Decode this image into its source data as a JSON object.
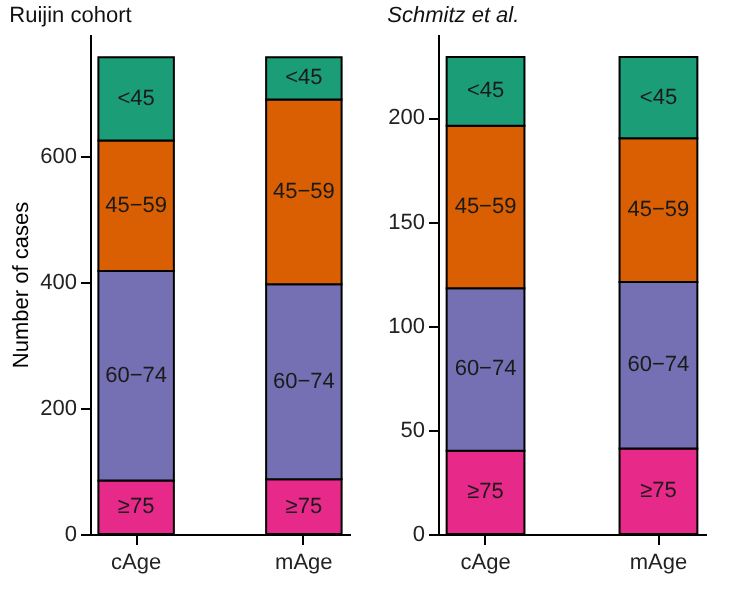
{
  "chart_data": [
    {
      "type": "bar",
      "title": "Ruijin cohort",
      "ylabel": "Number of cases",
      "categories": [
        "cAge",
        "mAge"
      ],
      "stacked": true,
      "legend": false,
      "grid": false,
      "series": [
        {
          "name": "≥75",
          "color": "#e7298a",
          "values": [
            85,
            87
          ]
        },
        {
          "name": "60−74",
          "color": "#7570b3",
          "values": [
            332,
            309
          ]
        },
        {
          "name": "45−59",
          "color": "#d95f02",
          "values": [
            207,
            293
          ]
        },
        {
          "name": "<45",
          "color": "#1b9e77",
          "values": [
            132,
            67
          ]
        }
      ],
      "ylim": [
        0,
        793
      ],
      "yticks": [
        0,
        200,
        400,
        600
      ]
    },
    {
      "type": "bar",
      "title": "Schmitz et al.",
      "categories": [
        "cAge",
        "mAge"
      ],
      "stacked": true,
      "legend": false,
      "grid": false,
      "series": [
        {
          "name": "≥75",
          "color": "#e7298a",
          "values": [
            40,
            41
          ]
        },
        {
          "name": "60−74",
          "color": "#7570b3",
          "values": [
            78,
            80
          ]
        },
        {
          "name": "45−59",
          "color": "#d95f02",
          "values": [
            78,
            69
          ]
        },
        {
          "name": "<45",
          "color": "#1b9e77",
          "values": [
            33,
            39
          ]
        }
      ],
      "ylim": [
        0,
        240
      ],
      "yticks": [
        0,
        50,
        100,
        150,
        200
      ]
    }
  ]
}
